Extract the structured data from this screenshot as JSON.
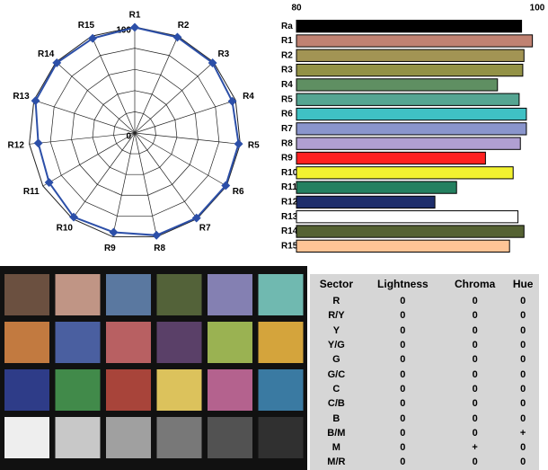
{
  "chart_data": [
    {
      "type": "radar",
      "categories": [
        "R1",
        "R2",
        "R3",
        "R4",
        "R5",
        "R6",
        "R7",
        "R8",
        "R9",
        "R10",
        "R11",
        "R12",
        "R13",
        "R14",
        "R15"
      ],
      "values": [
        99.6,
        98.9,
        98.8,
        96.7,
        98.5,
        99.1,
        99.1,
        98.6,
        95.7,
        98.0,
        93.3,
        91.5,
        98.4,
        98.9,
        97.7
      ],
      "color": "#2c4fa8",
      "rlim": [
        0,
        100
      ],
      "rticks": [
        0,
        100
      ],
      "grid": true
    },
    {
      "type": "hbar",
      "categories": [
        "Ra",
        "R1",
        "R2",
        "R3",
        "R4",
        "R5",
        "R6",
        "R7",
        "R8",
        "R9",
        "R10",
        "R11",
        "R12",
        "R13",
        "R14",
        "R15"
      ],
      "values": [
        98.7,
        99.6,
        98.9,
        98.8,
        96.7,
        98.5,
        99.1,
        99.1,
        98.6,
        95.7,
        98.0,
        93.3,
        91.5,
        98.4,
        98.9,
        97.7
      ],
      "colors": [
        "#000000",
        "#c08272",
        "#a29454",
        "#939246",
        "#5f8f62",
        "#55a592",
        "#3fc1c4",
        "#8a95cc",
        "#b09fd2",
        "#ff2020",
        "#f2f230",
        "#248060",
        "#1e2e6c",
        "#ffffff",
        "#556233",
        "#ffc496"
      ],
      "xlim": [
        80,
        100
      ],
      "xticks": [
        80,
        100
      ]
    }
  ],
  "color_checker": {
    "colors": [
      "#6b5040",
      "#c09585",
      "#5a78a0",
      "#536239",
      "#8480b2",
      "#70b9b0",
      "#c27a40",
      "#4a5fa0",
      "#b86062",
      "#5a4068",
      "#9ab252",
      "#d4a43c",
      "#2e3c88",
      "#418a4a",
      "#a8443a",
      "#dcc25c",
      "#b4628e",
      "#3a7aa2",
      "#eeeeee",
      "#c8c8c8",
      "#a0a0a0",
      "#787878",
      "#525252",
      "#303030"
    ]
  },
  "table": {
    "columns": [
      "Sector",
      "Lightness",
      "Chroma",
      "Hue"
    ],
    "rows": [
      [
        "R",
        "0",
        "0",
        "0"
      ],
      [
        "R/Y",
        "0",
        "0",
        "0"
      ],
      [
        "Y",
        "0",
        "0",
        "0"
      ],
      [
        "Y/G",
        "0",
        "0",
        "0"
      ],
      [
        "G",
        "0",
        "0",
        "0"
      ],
      [
        "G/C",
        "0",
        "0",
        "0"
      ],
      [
        "C",
        "0",
        "0",
        "0"
      ],
      [
        "C/B",
        "0",
        "0",
        "0"
      ],
      [
        "B",
        "0",
        "0",
        "0"
      ],
      [
        "B/M",
        "0",
        "0",
        "+"
      ],
      [
        "M",
        "0",
        "+",
        "0"
      ],
      [
        "M/R",
        "0",
        "0",
        "0"
      ]
    ]
  }
}
